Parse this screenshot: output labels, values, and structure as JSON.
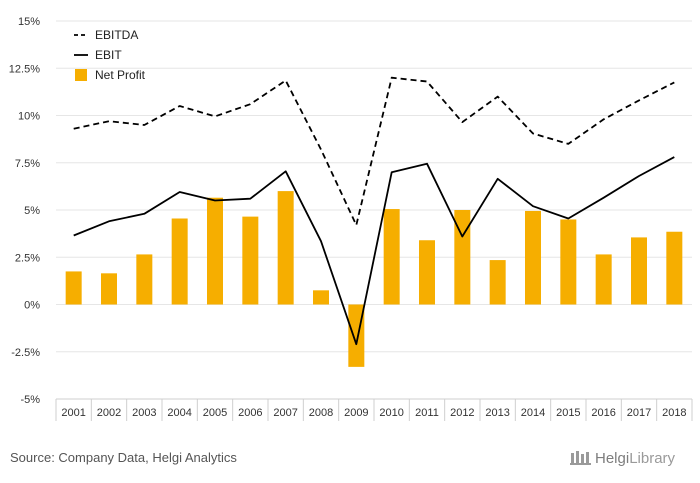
{
  "chart_data": {
    "type": "bar",
    "categories": [
      "2001",
      "2002",
      "2003",
      "2004",
      "2005",
      "2006",
      "2007",
      "2008",
      "2009",
      "2010",
      "2011",
      "2012",
      "2013",
      "2014",
      "2015",
      "2016",
      "2017",
      "2018"
    ],
    "series": [
      {
        "name": "EBITDA",
        "kind": "line",
        "style": "dashed",
        "color": "#000000",
        "values": [
          9.3,
          9.7,
          9.5,
          10.5,
          9.95,
          10.6,
          11.85,
          8.2,
          4.2,
          12.0,
          11.8,
          9.65,
          11.0,
          9.05,
          8.5,
          9.8,
          10.8,
          11.75
        ]
      },
      {
        "name": "EBIT",
        "kind": "line",
        "style": "solid",
        "color": "#000000",
        "values": [
          3.65,
          4.4,
          4.8,
          5.95,
          5.5,
          5.6,
          7.05,
          3.35,
          -2.1,
          7.0,
          7.45,
          3.6,
          6.65,
          5.2,
          4.55,
          5.65,
          6.8,
          7.8
        ]
      },
      {
        "name": "Net Profit",
        "kind": "bar",
        "color": "#F6AE00",
        "values": [
          1.75,
          1.65,
          2.65,
          4.55,
          5.65,
          4.65,
          6.0,
          0.75,
          -3.3,
          5.05,
          3.4,
          5.0,
          2.35,
          4.95,
          4.5,
          2.65,
          3.55,
          3.85
        ]
      }
    ],
    "y_ticks": [
      "15%",
      "12.5%",
      "10%",
      "7.5%",
      "5%",
      "2.5%",
      "0%",
      "-2.5%",
      "-5%"
    ],
    "ylim": [
      -5,
      15
    ],
    "y_step": 2.5,
    "grid": true,
    "legend_position": "top-left"
  },
  "footer": {
    "source": "Source: Company Data, Helgi Analytics",
    "brand_a": "Helgi",
    "brand_b": "Library"
  },
  "colors": {
    "grid": "#e6e6e6",
    "axis": "#cfcfcf",
    "bar": "#F6AE00",
    "line": "#000000"
  }
}
